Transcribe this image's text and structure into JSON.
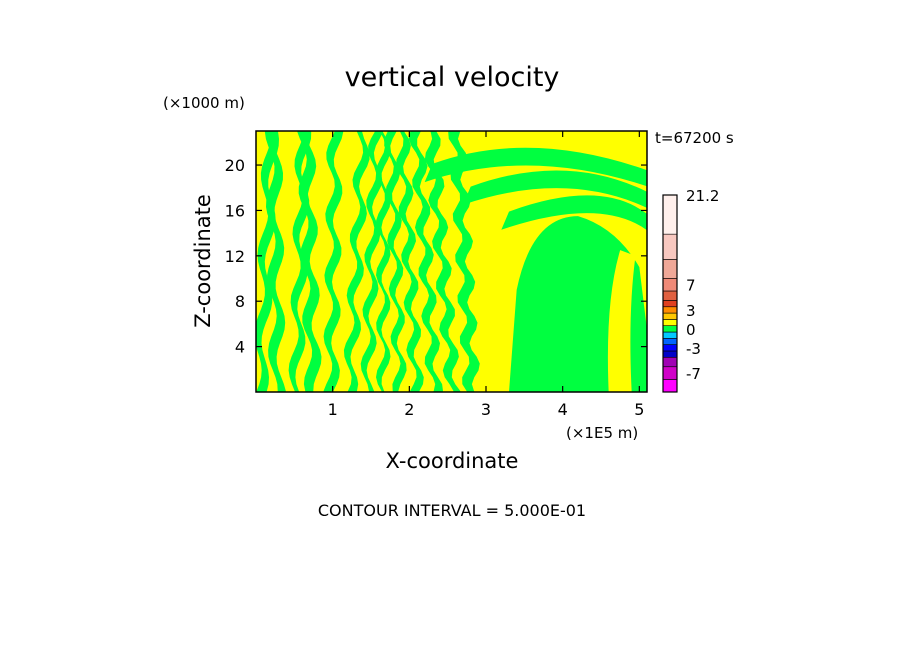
{
  "chart_data": {
    "type": "heatmap",
    "title": "vertical velocity",
    "time_label": "t=67200 s",
    "xlabel": "X-coordinate",
    "ylabel": "Z-coordinate",
    "x_unit": "(×1E5 m)",
    "y_unit": "(×1000 m)",
    "footer": "CONTOUR INTERVAL = 5.000E-01",
    "xlim": [
      0,
      5.1
    ],
    "ylim": [
      0,
      23
    ],
    "x_ticks": [
      1,
      2,
      3,
      4,
      5
    ],
    "y_ticks": [
      4,
      8,
      12,
      16,
      20
    ],
    "field_colors": {
      "positive": "#ffff00",
      "negative": "#00ff40"
    },
    "colorbar": {
      "range": [
        -10,
        21.2
      ],
      "labels": [
        "21.2",
        "7",
        "3",
        "0",
        "-3",
        "-7"
      ],
      "label_values": [
        21.2,
        7,
        3,
        0,
        -3,
        -7
      ],
      "bands": [
        {
          "from": -10,
          "to": -8,
          "color": "#ff00ff"
        },
        {
          "from": -8,
          "to": -6,
          "color": "#d000c8"
        },
        {
          "from": -6,
          "to": -4.5,
          "color": "#a000b4"
        },
        {
          "from": -4.5,
          "to": -3.5,
          "color": "#0000c8"
        },
        {
          "from": -3.5,
          "to": -2.5,
          "color": "#0000ff"
        },
        {
          "from": -2.5,
          "to": -1.5,
          "color": "#0064ff"
        },
        {
          "from": -1.5,
          "to": -0.5,
          "color": "#00c8ff"
        },
        {
          "from": -0.5,
          "to": 0.5,
          "color": "#00ff40"
        },
        {
          "from": 0.5,
          "to": 1.5,
          "color": "#ffff00"
        },
        {
          "from": 1.5,
          "to": 2.5,
          "color": "#ffc800"
        },
        {
          "from": 2.5,
          "to": 3.5,
          "color": "#ff8c00"
        },
        {
          "from": 3.5,
          "to": 4.5,
          "color": "#e04020"
        },
        {
          "from": 4.5,
          "to": 6,
          "color": "#e06040"
        },
        {
          "from": 6,
          "to": 8,
          "color": "#f08a78"
        },
        {
          "from": 8,
          "to": 11,
          "color": "#f0a898"
        },
        {
          "from": 11,
          "to": 15,
          "color": "#f8c8c0"
        },
        {
          "from": 15,
          "to": 21.2,
          "color": "#fff0ec"
        }
      ]
    }
  }
}
